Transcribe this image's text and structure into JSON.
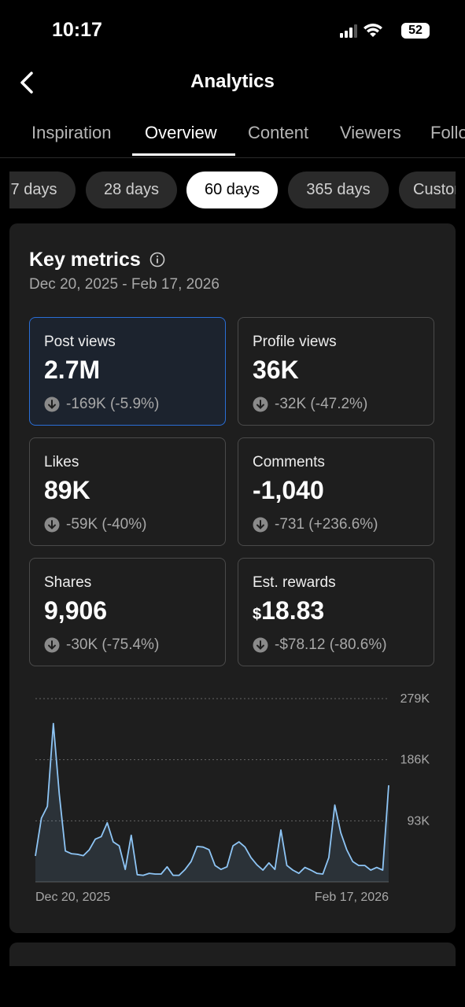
{
  "status": {
    "time": "10:17",
    "battery": "52"
  },
  "header": {
    "title": "Analytics"
  },
  "tabs": [
    "Inspiration",
    "Overview",
    "Content",
    "Viewers",
    "Followers"
  ],
  "active_tab": 1,
  "ranges": [
    "7 days",
    "28 days",
    "60 days",
    "365 days",
    "Custom"
  ],
  "active_range": 2,
  "card": {
    "title": "Key metrics",
    "date_range": "Dec 20, 2025 - Feb 17, 2026",
    "metrics": [
      {
        "label": "Post views",
        "value": "2.7M",
        "change": "-169K (-5.9%)"
      },
      {
        "label": "Profile views",
        "value": "36K",
        "change": "-32K (-47.2%)"
      },
      {
        "label": "Likes",
        "value": "89K",
        "change": "-59K (-40%)"
      },
      {
        "label": "Comments",
        "value": "-1,040",
        "change": "-731 (+236.6%)"
      },
      {
        "label": "Shares",
        "value": "9,906",
        "change": "-30K (-75.4%)"
      },
      {
        "label": "Est. rewards",
        "currency": "$",
        "value": "18.83",
        "change": "-$78.12 (-80.6%)"
      }
    ],
    "selected_metric": 0
  },
  "chart_data": {
    "type": "line",
    "color": "#8ec5f5",
    "grid": true,
    "categories": [
      "Dec 20, 2025",
      null,
      null,
      null,
      null,
      null,
      null,
      null,
      null,
      null,
      null,
      null,
      null,
      null,
      null,
      null,
      null,
      null,
      null,
      null,
      null,
      null,
      null,
      null,
      null,
      null,
      null,
      null,
      null,
      null,
      null,
      null,
      null,
      null,
      null,
      null,
      null,
      null,
      null,
      null,
      null,
      null,
      null,
      null,
      null,
      null,
      null,
      null,
      null,
      null,
      null,
      null,
      null,
      null,
      null,
      null,
      null,
      null,
      null,
      "Feb 17, 2026"
    ],
    "values": [
      39500,
      97000,
      115000,
      241000,
      133000,
      47000,
      43000,
      42000,
      40000,
      49000,
      65000,
      69000,
      90000,
      61000,
      55000,
      19000,
      71000,
      11000,
      10000,
      13000,
      12000,
      12000,
      23000,
      10000,
      10000,
      19000,
      31000,
      54000,
      53000,
      49000,
      25000,
      19000,
      23000,
      55000,
      61000,
      53000,
      37000,
      26000,
      18000,
      29000,
      19000,
      79000,
      25000,
      18000,
      13000,
      22000,
      18000,
      13000,
      12000,
      37000,
      117000,
      75000,
      49000,
      31000,
      25000,
      25000,
      18000,
      22000,
      18000,
      147000
    ],
    "ylim": [
      0,
      279000
    ],
    "yticks": [
      {
        "value": 93000,
        "label": "93K"
      },
      {
        "value": 186000,
        "label": "186K"
      },
      {
        "value": 279000,
        "label": "279K"
      }
    ]
  }
}
